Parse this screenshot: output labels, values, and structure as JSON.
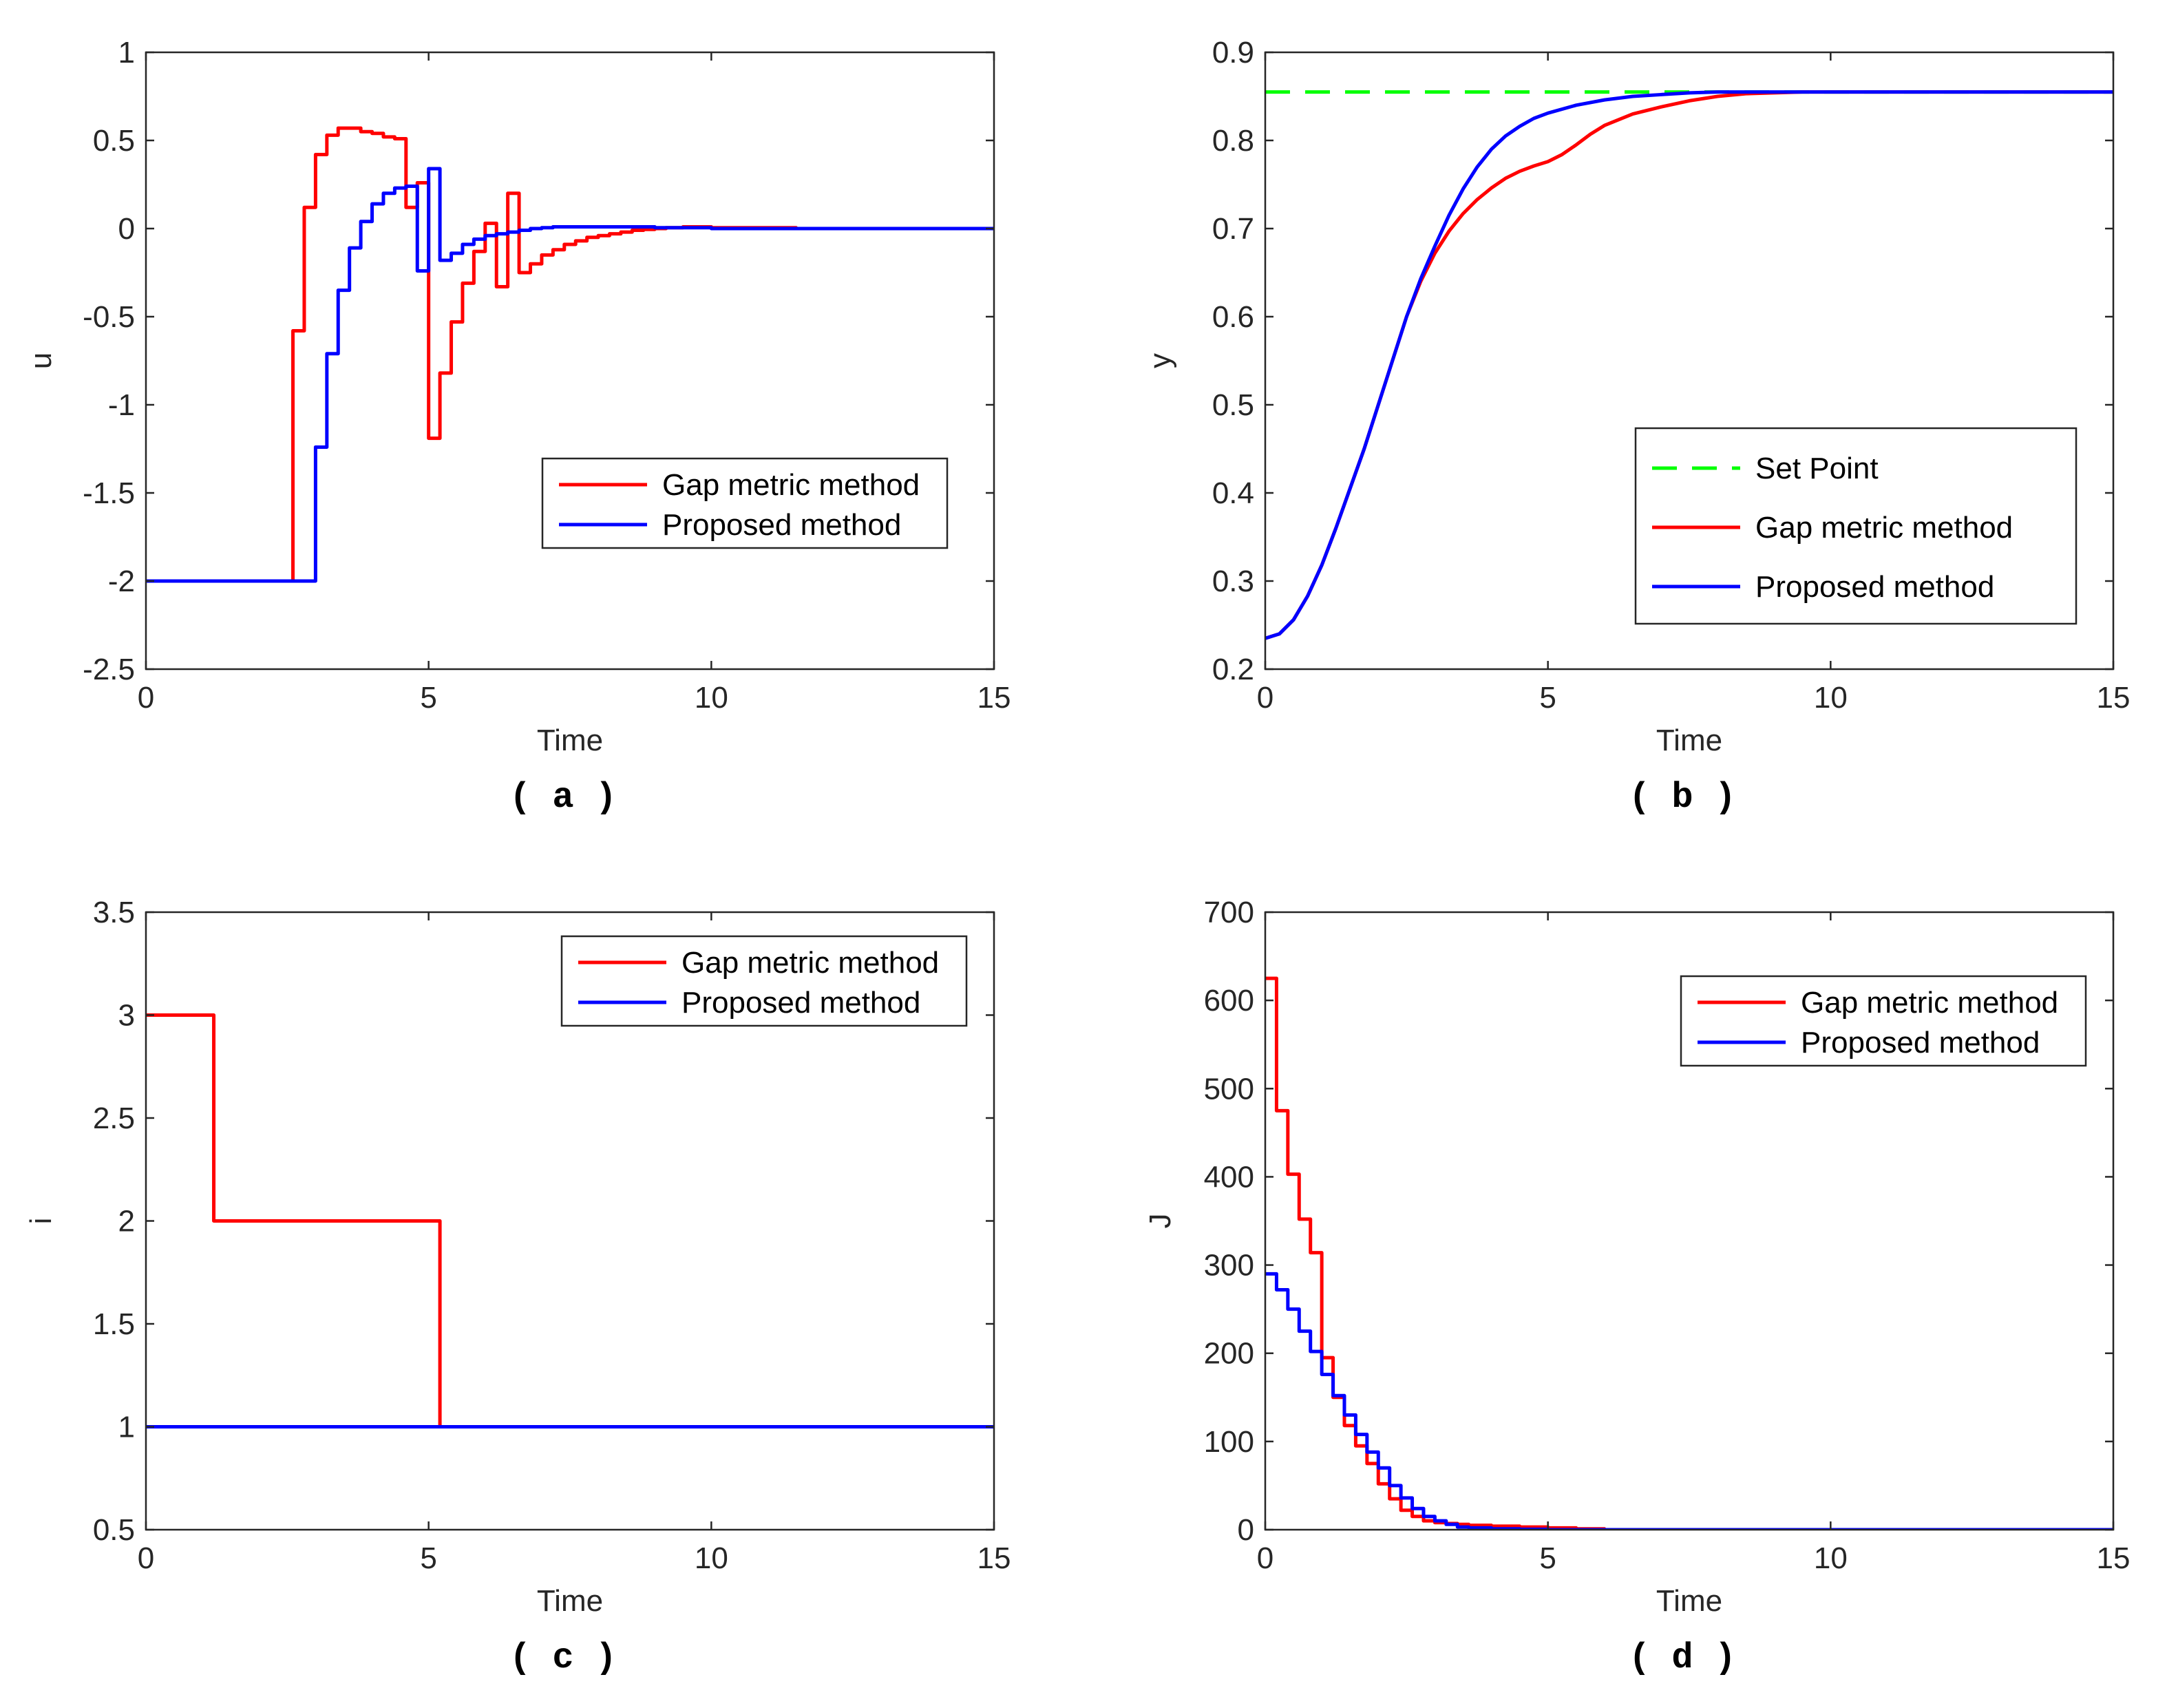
{
  "chart_data": [
    {
      "type": "line",
      "panel": "a",
      "caption": "( a )",
      "xlabel": "Time",
      "ylabel": "u",
      "xlim": [
        0,
        15
      ],
      "ylim": [
        -2.5,
        1
      ],
      "xticks": [
        0,
        5,
        10,
        15
      ],
      "yticks": [
        -2.5,
        -2,
        -1.5,
        -1,
        -0.5,
        0,
        0.5,
        1
      ],
      "xtick_labels": [
        "0",
        "5",
        "10",
        "15"
      ],
      "ytick_labels": [
        "-2.5",
        "-2",
        "-1.5",
        "-1",
        "-0.5",
        "0",
        "0.5",
        "1"
      ],
      "legend_position": "center-right",
      "series": [
        {
          "name": "Gap metric method",
          "color": "#ff0000",
          "style": "stairs",
          "x": [
            0,
            2.6,
            2.8,
            3.0,
            3.2,
            3.4,
            3.6,
            3.8,
            4.0,
            4.2,
            4.4,
            4.6,
            4.8,
            5.0,
            5.2,
            5.4,
            5.6,
            5.8,
            6.0,
            6.2,
            6.4,
            6.6,
            6.8,
            7.0,
            7.2,
            7.4,
            7.6,
            7.8,
            8.0,
            8.2,
            8.4,
            8.6,
            8.8,
            9.0,
            9.2,
            9.5,
            10.0,
            11.5,
            15
          ],
          "y": [
            -2.0,
            -0.58,
            0.12,
            0.42,
            0.53,
            0.57,
            0.57,
            0.55,
            0.54,
            0.52,
            0.51,
            0.12,
            0.26,
            -1.19,
            -0.82,
            -0.53,
            -0.31,
            -0.13,
            0.03,
            -0.33,
            0.2,
            -0.25,
            -0.2,
            -0.15,
            -0.12,
            -0.09,
            -0.07,
            -0.05,
            -0.04,
            -0.03,
            -0.02,
            -0.01,
            -0.005,
            0.0,
            0.005,
            0.01,
            0.005,
            0.0,
            0.0
          ]
        },
        {
          "name": "Proposed method",
          "color": "#0000ff",
          "style": "stairs",
          "x": [
            0,
            3.0,
            3.2,
            3.4,
            3.6,
            3.8,
            4.0,
            4.2,
            4.4,
            4.6,
            4.8,
            5.0,
            5.2,
            5.4,
            5.6,
            5.8,
            6.0,
            6.2,
            6.4,
            6.6,
            6.8,
            7.0,
            7.2,
            7.4,
            7.6,
            7.8,
            8.0,
            8.5,
            9.0,
            10.0,
            15
          ],
          "y": [
            -2.0,
            -1.24,
            -0.71,
            -0.35,
            -0.11,
            0.04,
            0.14,
            0.2,
            0.23,
            0.24,
            -0.24,
            0.34,
            -0.18,
            -0.14,
            -0.09,
            -0.06,
            -0.04,
            -0.03,
            -0.02,
            -0.01,
            0.0,
            0.005,
            0.01,
            0.01,
            0.01,
            0.01,
            0.01,
            0.01,
            0.005,
            0.0,
            0.0
          ]
        }
      ]
    },
    {
      "type": "line",
      "panel": "b",
      "caption": "( b )",
      "xlabel": "Time",
      "ylabel": "y",
      "xlim": [
        0,
        15
      ],
      "ylim": [
        0.2,
        0.9
      ],
      "xticks": [
        0,
        5,
        10,
        15
      ],
      "yticks": [
        0.2,
        0.3,
        0.4,
        0.5,
        0.6,
        0.7,
        0.8,
        0.9
      ],
      "xtick_labels": [
        "0",
        "5",
        "10",
        "15"
      ],
      "ytick_labels": [
        "0.2",
        "0.3",
        "0.4",
        "0.5",
        "0.6",
        "0.7",
        "0.8",
        "0.9"
      ],
      "legend_position": "lower-right",
      "series": [
        {
          "name": "Set Point",
          "color": "#00ff00",
          "style": "dashed",
          "x": [
            0,
            15
          ],
          "y": [
            0.855,
            0.855
          ]
        },
        {
          "name": "Gap metric method",
          "color": "#ff0000",
          "style": "line",
          "x": [
            0,
            0.25,
            0.5,
            0.75,
            1.0,
            1.25,
            1.5,
            1.75,
            2.0,
            2.25,
            2.5,
            2.75,
            3.0,
            3.25,
            3.5,
            3.75,
            4.0,
            4.25,
            4.5,
            4.75,
            5.0,
            5.25,
            5.5,
            5.75,
            6.0,
            6.5,
            7.0,
            7.5,
            8.0,
            8.5,
            9.0,
            9.5,
            10.0,
            11,
            12,
            13,
            14,
            15
          ],
          "y": [
            0.235,
            0.24,
            0.256,
            0.283,
            0.318,
            0.36,
            0.405,
            0.45,
            0.5,
            0.55,
            0.6,
            0.64,
            0.672,
            0.697,
            0.717,
            0.733,
            0.746,
            0.757,
            0.765,
            0.771,
            0.776,
            0.784,
            0.795,
            0.807,
            0.817,
            0.83,
            0.838,
            0.845,
            0.85,
            0.853,
            0.854,
            0.855,
            0.855,
            0.855,
            0.855,
            0.855,
            0.855,
            0.855
          ]
        },
        {
          "name": "Proposed method",
          "color": "#0000ff",
          "style": "line",
          "x": [
            0,
            0.25,
            0.5,
            0.75,
            1.0,
            1.25,
            1.5,
            1.75,
            2.0,
            2.25,
            2.5,
            2.75,
            3.0,
            3.25,
            3.5,
            3.75,
            4.0,
            4.25,
            4.5,
            4.75,
            5.0,
            5.5,
            6.0,
            6.5,
            7.0,
            7.5,
            8.0,
            9.0,
            10.0,
            11,
            12,
            13,
            14,
            15
          ],
          "y": [
            0.235,
            0.24,
            0.256,
            0.283,
            0.318,
            0.36,
            0.405,
            0.45,
            0.5,
            0.55,
            0.6,
            0.643,
            0.68,
            0.715,
            0.745,
            0.77,
            0.79,
            0.805,
            0.816,
            0.825,
            0.831,
            0.84,
            0.846,
            0.85,
            0.852,
            0.854,
            0.855,
            0.855,
            0.855,
            0.855,
            0.855,
            0.855,
            0.855,
            0.855
          ]
        }
      ]
    },
    {
      "type": "line",
      "panel": "c",
      "caption": "( c )",
      "xlabel": "Time",
      "ylabel": "i",
      "xlim": [
        0,
        15
      ],
      "ylim": [
        0.5,
        3.5
      ],
      "xticks": [
        0,
        5,
        10,
        15
      ],
      "yticks": [
        0.5,
        1,
        1.5,
        2,
        2.5,
        3,
        3.5
      ],
      "xtick_labels": [
        "0",
        "5",
        "10",
        "15"
      ],
      "ytick_labels": [
        "0.5",
        "1",
        "1.5",
        "2",
        "2.5",
        "3",
        "3.5"
      ],
      "legend_position": "top-right",
      "series": [
        {
          "name": "Gap metric method",
          "color": "#ff0000",
          "style": "stairs",
          "x": [
            0,
            1.2,
            5.2,
            15
          ],
          "y": [
            3,
            2,
            1,
            1
          ]
        },
        {
          "name": "Proposed method",
          "color": "#0000ff",
          "style": "stairs",
          "x": [
            0,
            15
          ],
          "y": [
            1,
            1
          ]
        }
      ]
    },
    {
      "type": "line",
      "panel": "d",
      "caption": "( d )",
      "xlabel": "Time",
      "ylabel": "J",
      "xlim": [
        0,
        15
      ],
      "ylim": [
        0,
        700
      ],
      "xticks": [
        0,
        5,
        10,
        15
      ],
      "yticks": [
        0,
        100,
        200,
        300,
        400,
        500,
        600,
        700
      ],
      "xtick_labels": [
        "0",
        "5",
        "10",
        "15"
      ],
      "ytick_labels": [
        "0",
        "100",
        "200",
        "300",
        "400",
        "500",
        "600",
        "700"
      ],
      "legend_position": "top-right",
      "series": [
        {
          "name": "Gap metric method",
          "color": "#ff0000",
          "style": "stairs",
          "x": [
            0,
            0.2,
            0.4,
            0.6,
            0.8,
            1.0,
            1.2,
            1.4,
            1.6,
            1.8,
            2.0,
            2.2,
            2.4,
            2.6,
            2.8,
            3.0,
            3.2,
            3.4,
            3.6,
            4.0,
            4.5,
            5.0,
            5.5,
            6.0,
            15
          ],
          "y": [
            625,
            475,
            403,
            352,
            314,
            195,
            150,
            118,
            95,
            75,
            52,
            35,
            22,
            15,
            10,
            8,
            7,
            6,
            5,
            4,
            3,
            2,
            1,
            0,
            0
          ]
        },
        {
          "name": "Proposed method",
          "color": "#0000ff",
          "style": "stairs",
          "x": [
            0,
            0.2,
            0.4,
            0.6,
            0.8,
            1.0,
            1.2,
            1.4,
            1.6,
            1.8,
            2.0,
            2.2,
            2.4,
            2.6,
            2.8,
            3.0,
            3.2,
            3.4,
            3.6,
            4.0,
            4.5,
            5.0,
            15
          ],
          "y": [
            290,
            272,
            250,
            225,
            202,
            176,
            152,
            130,
            108,
            88,
            70,
            50,
            36,
            24,
            15,
            10,
            6,
            3,
            2,
            1,
            0.5,
            0,
            0
          ]
        }
      ]
    }
  ]
}
